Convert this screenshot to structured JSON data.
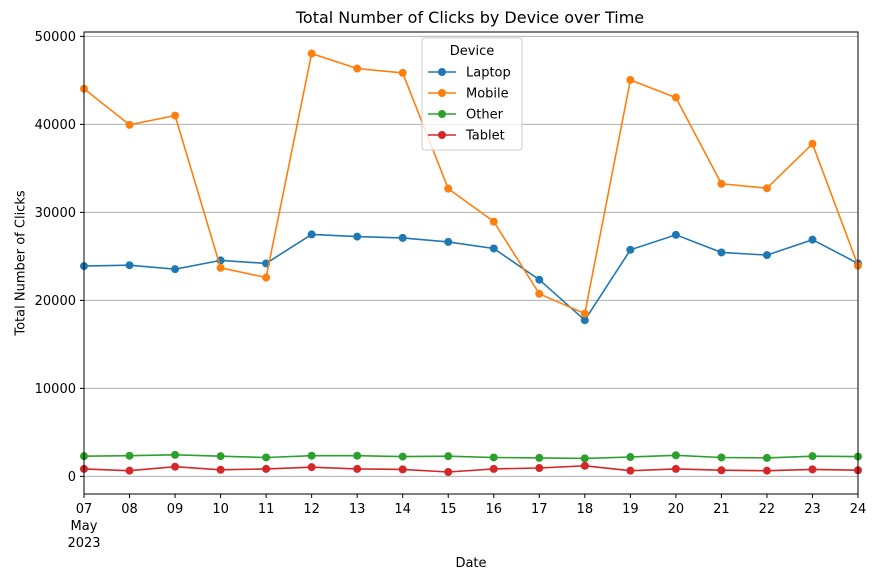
{
  "chart_data": {
    "type": "line",
    "title": "Total Number of Clicks by Device over Time",
    "xlabel": "Date",
    "ylabel": "Total Number of Clicks",
    "x": [
      "2023-05-07",
      "2023-05-08",
      "2023-05-09",
      "2023-05-10",
      "2023-05-11",
      "2023-05-12",
      "2023-05-13",
      "2023-05-14",
      "2023-05-15",
      "2023-05-16",
      "2023-05-17",
      "2023-05-18",
      "2023-05-19",
      "2023-05-20",
      "2023-05-21",
      "2023-05-22",
      "2023-05-23",
      "2023-05-24"
    ],
    "x_tick_labels": [
      "07",
      "08",
      "09",
      "10",
      "11",
      "12",
      "13",
      "14",
      "15",
      "16",
      "17",
      "18",
      "19",
      "20",
      "21",
      "22",
      "23",
      "24"
    ],
    "x_sublabel_month": "May",
    "x_sublabel_year": "2023",
    "ylim": [
      -2000,
      50500
    ],
    "y_ticks": [
      0,
      10000,
      20000,
      30000,
      40000,
      50000
    ],
    "y_tick_labels": [
      "0",
      "10000",
      "20000",
      "30000",
      "40000",
      "50000"
    ],
    "grid": "horizontal",
    "legend": {
      "title": "Device",
      "position": "upper-center"
    },
    "series": [
      {
        "name": "Laptop",
        "color": "#1f77b4",
        "values": [
          23900,
          24000,
          23550,
          24550,
          24200,
          27500,
          27250,
          27100,
          26650,
          25900,
          22350,
          17750,
          25750,
          27450,
          25450,
          25150,
          26900,
          24200
        ]
      },
      {
        "name": "Mobile",
        "color": "#ff7f0e",
        "values": [
          44050,
          39950,
          41000,
          23700,
          22600,
          48050,
          46350,
          45850,
          32700,
          28950,
          20750,
          18500,
          45050,
          43050,
          33250,
          32750,
          37800,
          23950
        ]
      },
      {
        "name": "Other",
        "color": "#2ca02c",
        "values": [
          2300,
          2350,
          2450,
          2300,
          2150,
          2350,
          2350,
          2250,
          2300,
          2150,
          2100,
          2050,
          2200,
          2400,
          2150,
          2100,
          2300,
          2250
        ]
      },
      {
        "name": "Tablet",
        "color": "#d62728",
        "values": [
          850,
          650,
          1100,
          750,
          850,
          1050,
          850,
          800,
          500,
          850,
          950,
          1200,
          650,
          850,
          700,
          650,
          800,
          700
        ]
      }
    ]
  }
}
